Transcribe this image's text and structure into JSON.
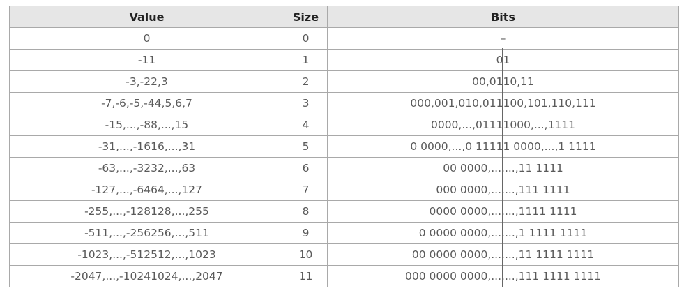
{
  "table": {
    "headers": {
      "value": "Value",
      "size": "Size",
      "bits": "Bits"
    },
    "rows": [
      {
        "value": "0",
        "size": "0",
        "bits": "–"
      },
      {
        "value": "-11",
        "size": "1",
        "bits": "01"
      },
      {
        "value": "-3,-22,3",
        "size": "2",
        "bits": "00,0110,11"
      },
      {
        "value": "-7,-6,-5,-44,5,6,7",
        "size": "3",
        "bits": "000,001,010,011100,101,110,111"
      },
      {
        "value": "-15,...,-88,...,15",
        "size": "4",
        "bits": "0000,...,01111000,...,1111"
      },
      {
        "value": "-31,...,-1616,...,31",
        "size": "5",
        "bits": "0 0000,...,0 11111 0000,...,1 1111"
      },
      {
        "value": "-63,...,-3232,...,63",
        "size": "6",
        "bits": "00 0000,.......,11 1111"
      },
      {
        "value": "-127,...,-6464,...,127",
        "size": "7",
        "bits": "000 0000,.......,111 1111"
      },
      {
        "value": "-255,...,-128128,...,255",
        "size": "8",
        "bits": "0000 0000,.......,1111 1111"
      },
      {
        "value": "-511,...,-256256,...,511",
        "size": "9",
        "bits": "0 0000 0000,.......,1 1111 1111"
      },
      {
        "value": "-1023,...,-512512,...,1023",
        "size": "10",
        "bits": "00 0000 0000,.......,11 1111 1111"
      },
      {
        "value": "-2047,...,-10241024,...,2047",
        "size": "11",
        "bits": "000 0000 0000,.......,111 1111 1111"
      }
    ]
  }
}
